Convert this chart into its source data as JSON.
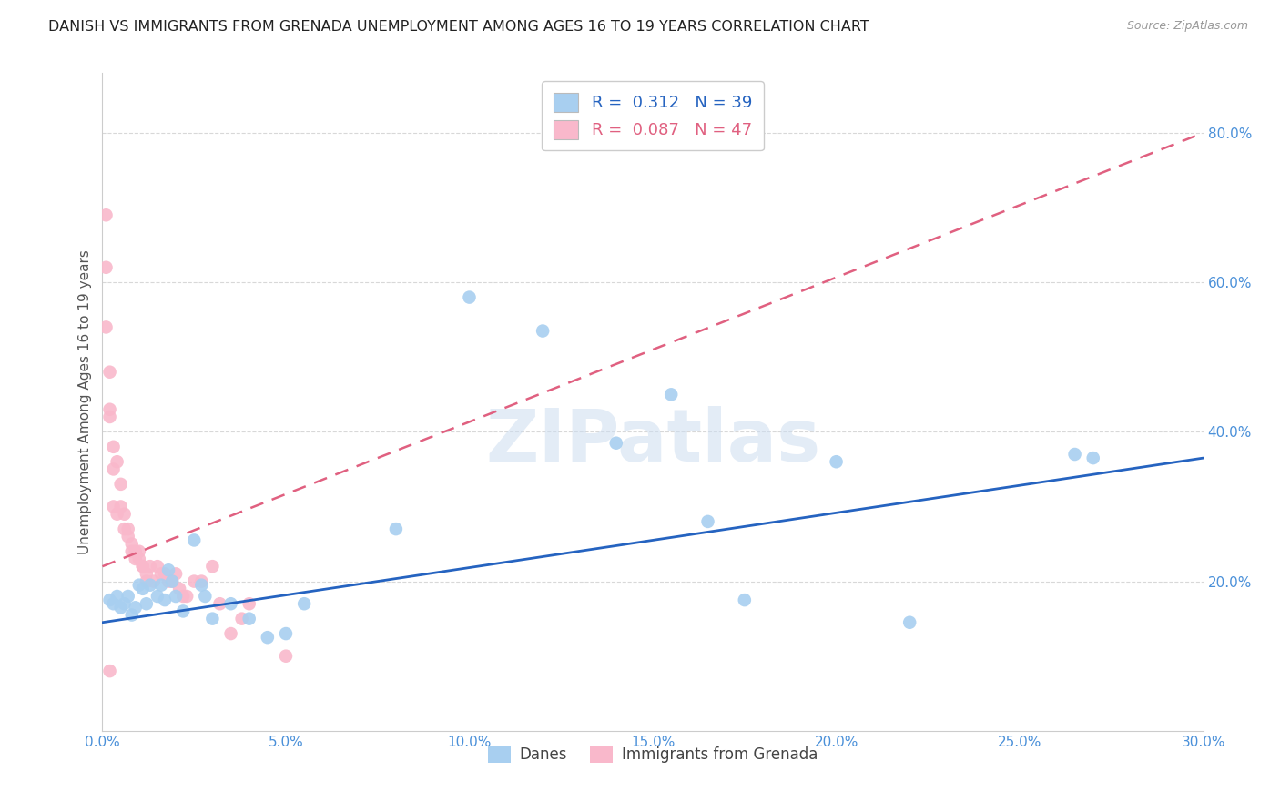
{
  "title": "DANISH VS IMMIGRANTS FROM GRENADA UNEMPLOYMENT AMONG AGES 16 TO 19 YEARS CORRELATION CHART",
  "source": "Source: ZipAtlas.com",
  "ylabel": "Unemployment Among Ages 16 to 19 years",
  "xlim": [
    0.0,
    0.3
  ],
  "ylim": [
    0.0,
    0.88
  ],
  "xticks": [
    0.0,
    0.05,
    0.1,
    0.15,
    0.2,
    0.25,
    0.3
  ],
  "yticks": [
    0.2,
    0.4,
    0.6,
    0.8
  ],
  "danes_color": "#a8cff0",
  "grenada_color": "#f9b8cb",
  "danes_line_color": "#2563c0",
  "grenada_line_color": "#e06080",
  "danes_R": 0.312,
  "danes_N": 39,
  "grenada_R": 0.087,
  "grenada_N": 47,
  "danes_x": [
    0.002,
    0.003,
    0.004,
    0.005,
    0.006,
    0.007,
    0.008,
    0.009,
    0.01,
    0.011,
    0.012,
    0.013,
    0.015,
    0.016,
    0.017,
    0.018,
    0.019,
    0.02,
    0.022,
    0.025,
    0.027,
    0.028,
    0.03,
    0.035,
    0.04,
    0.045,
    0.05,
    0.055,
    0.08,
    0.1,
    0.12,
    0.14,
    0.155,
    0.165,
    0.175,
    0.2,
    0.22,
    0.265,
    0.27
  ],
  "danes_y": [
    0.175,
    0.17,
    0.18,
    0.165,
    0.17,
    0.18,
    0.155,
    0.165,
    0.195,
    0.19,
    0.17,
    0.195,
    0.18,
    0.195,
    0.175,
    0.215,
    0.2,
    0.18,
    0.16,
    0.255,
    0.195,
    0.18,
    0.15,
    0.17,
    0.15,
    0.125,
    0.13,
    0.17,
    0.27,
    0.58,
    0.535,
    0.385,
    0.45,
    0.28,
    0.175,
    0.36,
    0.145,
    0.37,
    0.365
  ],
  "grenada_x": [
    0.001,
    0.001,
    0.001,
    0.002,
    0.002,
    0.002,
    0.002,
    0.003,
    0.003,
    0.003,
    0.004,
    0.004,
    0.005,
    0.005,
    0.006,
    0.006,
    0.007,
    0.007,
    0.008,
    0.008,
    0.009,
    0.009,
    0.01,
    0.01,
    0.011,
    0.011,
    0.012,
    0.012,
    0.013,
    0.014,
    0.015,
    0.016,
    0.017,
    0.018,
    0.019,
    0.02,
    0.021,
    0.022,
    0.023,
    0.025,
    0.027,
    0.03,
    0.032,
    0.035,
    0.038,
    0.04,
    0.05
  ],
  "grenada_y": [
    0.69,
    0.62,
    0.54,
    0.48,
    0.43,
    0.42,
    0.08,
    0.38,
    0.35,
    0.3,
    0.36,
    0.29,
    0.33,
    0.3,
    0.29,
    0.27,
    0.27,
    0.26,
    0.25,
    0.24,
    0.24,
    0.23,
    0.24,
    0.23,
    0.22,
    0.22,
    0.21,
    0.2,
    0.22,
    0.2,
    0.22,
    0.21,
    0.21,
    0.2,
    0.2,
    0.21,
    0.19,
    0.18,
    0.18,
    0.2,
    0.2,
    0.22,
    0.17,
    0.13,
    0.15,
    0.17,
    0.1
  ],
  "danes_trendline_x": [
    0.0,
    0.3
  ],
  "danes_trendline_y": [
    0.145,
    0.365
  ],
  "grenada_trendline_x": [
    0.0,
    0.3
  ],
  "grenada_trendline_y": [
    0.22,
    0.8
  ],
  "watermark": "ZIPatlas",
  "background_color": "#ffffff",
  "grid_color": "#d8d8d8",
  "tick_color": "#4a90d9",
  "title_fontsize": 11.5,
  "label_fontsize": 11,
  "tick_fontsize": 11,
  "legend_fontsize": 13
}
